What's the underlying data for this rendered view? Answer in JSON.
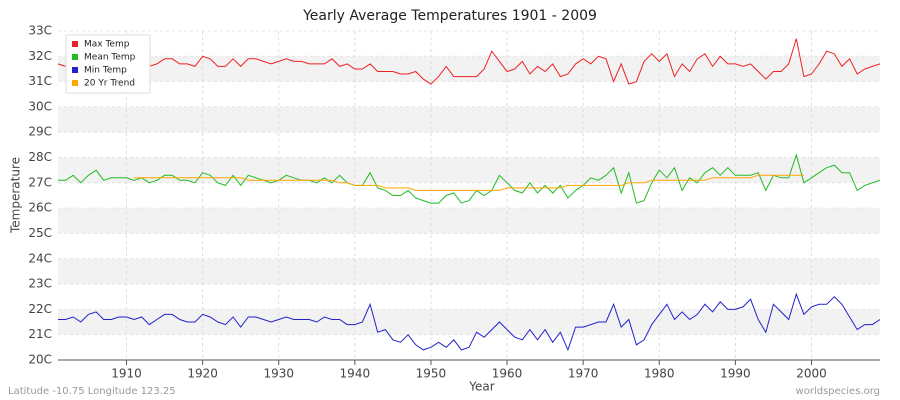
{
  "chart_data": {
    "type": "line",
    "title": "Yearly Average Temperatures 1901 - 2009",
    "xlabel": "Year",
    "ylabel": "Temperature",
    "footer_left": "Latitude -10.75 Longitude 123.25",
    "footer_right": "worldspecies.org",
    "x": [
      1901,
      1902,
      1903,
      1904,
      1905,
      1906,
      1907,
      1908,
      1909,
      1910,
      1911,
      1912,
      1913,
      1914,
      1915,
      1916,
      1917,
      1918,
      1919,
      1920,
      1921,
      1922,
      1923,
      1924,
      1925,
      1926,
      1927,
      1928,
      1929,
      1930,
      1931,
      1932,
      1933,
      1934,
      1935,
      1936,
      1937,
      1938,
      1939,
      1940,
      1941,
      1942,
      1943,
      1944,
      1945,
      1946,
      1947,
      1948,
      1949,
      1950,
      1951,
      1952,
      1953,
      1954,
      1955,
      1956,
      1957,
      1958,
      1959,
      1960,
      1961,
      1962,
      1963,
      1964,
      1965,
      1966,
      1967,
      1968,
      1969,
      1970,
      1971,
      1972,
      1973,
      1974,
      1975,
      1976,
      1977,
      1978,
      1979,
      1980,
      1981,
      1982,
      1983,
      1984,
      1985,
      1986,
      1987,
      1988,
      1989,
      1990,
      1991,
      1992,
      1993,
      1994,
      1995,
      1996,
      1997,
      1998,
      1999,
      2000,
      2001,
      2002,
      2003,
      2004,
      2005,
      2006,
      2007,
      2008,
      2009
    ],
    "series": [
      {
        "name": "Max Temp",
        "color": "#ee2222",
        "values": [
          31.7,
          31.6,
          31.8,
          31.6,
          31.7,
          31.7,
          31.6,
          31.6,
          31.7,
          31.6,
          31.5,
          31.6,
          31.6,
          31.7,
          31.9,
          31.9,
          31.7,
          31.7,
          31.6,
          32.0,
          31.9,
          31.6,
          31.6,
          31.9,
          31.6,
          31.9,
          31.9,
          31.8,
          31.7,
          31.8,
          31.9,
          31.8,
          31.8,
          31.7,
          31.7,
          31.7,
          31.9,
          31.6,
          31.7,
          31.5,
          31.5,
          31.7,
          31.4,
          31.4,
          31.4,
          31.3,
          31.3,
          31.4,
          31.1,
          30.9,
          31.2,
          31.6,
          31.2,
          31.2,
          31.2,
          31.2,
          31.5,
          32.2,
          31.8,
          31.4,
          31.5,
          31.8,
          31.3,
          31.6,
          31.4,
          31.7,
          31.2,
          31.3,
          31.7,
          31.9,
          31.7,
          32.0,
          31.9,
          31.0,
          31.7,
          30.9,
          31.0,
          31.8,
          32.1,
          31.8,
          32.1,
          31.2,
          31.7,
          31.4,
          31.9,
          32.1,
          31.6,
          32.0,
          31.7,
          31.7,
          31.6,
          31.7,
          31.4,
          31.1,
          31.4,
          31.4,
          31.7,
          32.7,
          31.2,
          31.3,
          31.7,
          32.2,
          32.1,
          31.6,
          31.9,
          31.3,
          31.5,
          31.6,
          31.7
        ]
      },
      {
        "name": "Mean Temp",
        "color": "#22bb22",
        "values": [
          27.1,
          27.1,
          27.3,
          27.0,
          27.3,
          27.5,
          27.1,
          27.2,
          27.2,
          27.2,
          27.1,
          27.2,
          27.0,
          27.1,
          27.3,
          27.3,
          27.1,
          27.1,
          27.0,
          27.4,
          27.3,
          27.0,
          26.9,
          27.3,
          26.9,
          27.3,
          27.2,
          27.1,
          27.0,
          27.1,
          27.3,
          27.2,
          27.1,
          27.1,
          27.0,
          27.2,
          27.0,
          27.3,
          27.0,
          26.9,
          26.9,
          27.4,
          26.8,
          26.7,
          26.5,
          26.5,
          26.7,
          26.4,
          26.3,
          26.2,
          26.2,
          26.5,
          26.6,
          26.2,
          26.3,
          26.7,
          26.5,
          26.7,
          27.3,
          27.0,
          26.7,
          26.6,
          27.0,
          26.6,
          26.9,
          26.6,
          26.9,
          26.4,
          26.7,
          26.9,
          27.2,
          27.1,
          27.3,
          27.6,
          26.6,
          27.4,
          26.2,
          26.3,
          27.0,
          27.5,
          27.2,
          27.6,
          26.7,
          27.2,
          27.0,
          27.4,
          27.6,
          27.3,
          27.6,
          27.3,
          27.3,
          27.3,
          27.4,
          26.7,
          27.3,
          27.2,
          27.2,
          28.1,
          27.0,
          27.2,
          27.4,
          27.6,
          27.7,
          27.4,
          27.4,
          26.7,
          26.9,
          27.0,
          27.1
        ]
      },
      {
        "name": "Min Temp",
        "color": "#2222cc",
        "values": [
          21.6,
          21.6,
          21.7,
          21.5,
          21.8,
          21.9,
          21.6,
          21.6,
          21.7,
          21.7,
          21.6,
          21.7,
          21.4,
          21.6,
          21.8,
          21.8,
          21.6,
          21.5,
          21.5,
          21.8,
          21.7,
          21.5,
          21.4,
          21.7,
          21.3,
          21.7,
          21.7,
          21.6,
          21.5,
          21.6,
          21.7,
          21.6,
          21.6,
          21.6,
          21.5,
          21.7,
          21.6,
          21.6,
          21.4,
          21.4,
          21.5,
          22.2,
          21.1,
          21.2,
          20.8,
          20.7,
          21.0,
          20.6,
          20.4,
          20.5,
          20.7,
          20.5,
          20.8,
          20.4,
          20.5,
          21.1,
          20.9,
          21.2,
          21.5,
          21.2,
          20.9,
          20.8,
          21.2,
          20.8,
          21.2,
          20.7,
          21.1,
          20.4,
          21.3,
          21.3,
          21.4,
          21.5,
          21.5,
          22.2,
          21.3,
          21.6,
          20.6,
          20.8,
          21.4,
          21.8,
          22.2,
          21.6,
          21.9,
          21.6,
          21.8,
          22.2,
          21.9,
          22.3,
          22.0,
          22.0,
          22.1,
          22.4,
          21.6,
          21.1,
          22.2,
          21.9,
          21.6,
          22.6,
          21.8,
          22.1,
          22.2,
          22.2,
          22.5,
          22.2,
          21.7,
          21.2,
          21.4,
          21.4,
          21.6
        ]
      },
      {
        "name": "20 Yr Trend",
        "color": "#ffa500",
        "values": [
          null,
          null,
          null,
          null,
          null,
          null,
          null,
          null,
          null,
          null,
          27.2,
          27.2,
          27.2,
          27.2,
          27.2,
          27.2,
          27.2,
          27.2,
          27.2,
          27.2,
          27.2,
          27.2,
          27.2,
          27.2,
          27.2,
          27.1,
          27.1,
          27.1,
          27.1,
          27.1,
          27.1,
          27.1,
          27.1,
          27.1,
          27.1,
          27.1,
          27.1,
          27.0,
          27.0,
          26.9,
          26.9,
          26.9,
          26.9,
          26.8,
          26.8,
          26.8,
          26.8,
          26.7,
          26.7,
          26.7,
          26.7,
          26.7,
          26.7,
          26.7,
          26.7,
          26.7,
          26.7,
          26.7,
          26.7,
          26.8,
          26.8,
          26.8,
          26.8,
          26.8,
          26.8,
          26.8,
          26.8,
          26.9,
          26.9,
          26.9,
          26.9,
          26.9,
          26.9,
          26.9,
          26.9,
          27.0,
          27.0,
          27.0,
          27.1,
          27.1,
          27.1,
          27.1,
          27.1,
          27.1,
          27.1,
          27.1,
          27.2,
          27.2,
          27.2,
          27.2,
          27.2,
          27.2,
          27.3,
          27.3,
          27.3,
          27.3,
          27.3,
          27.3,
          27.3,
          null,
          null,
          null,
          null,
          null,
          null,
          null,
          null,
          null,
          null
        ]
      }
    ],
    "xlim": [
      1901,
      2009
    ],
    "xticks": [
      1910,
      1920,
      1930,
      1940,
      1950,
      1960,
      1970,
      1980,
      1990,
      2000
    ],
    "ylim": [
      20,
      33
    ],
    "yticks": [
      {
        "value": 20,
        "label": "20C"
      },
      {
        "value": 21,
        "label": "21C"
      },
      {
        "value": 22,
        "label": "22C"
      },
      {
        "value": 23,
        "label": "23C"
      },
      {
        "value": 24,
        "label": "24C"
      },
      {
        "value": 25,
        "label": "25C"
      },
      {
        "value": 26,
        "label": "26C"
      },
      {
        "value": 27,
        "label": "27C"
      },
      {
        "value": 28,
        "label": "28C"
      },
      {
        "value": 29,
        "label": "29C"
      },
      {
        "value": 30,
        "label": "30C"
      },
      {
        "value": 31,
        "label": "31C"
      },
      {
        "value": 32,
        "label": "32C"
      },
      {
        "value": 33,
        "label": "33C"
      }
    ],
    "grid": true,
    "legend": "top-left"
  }
}
